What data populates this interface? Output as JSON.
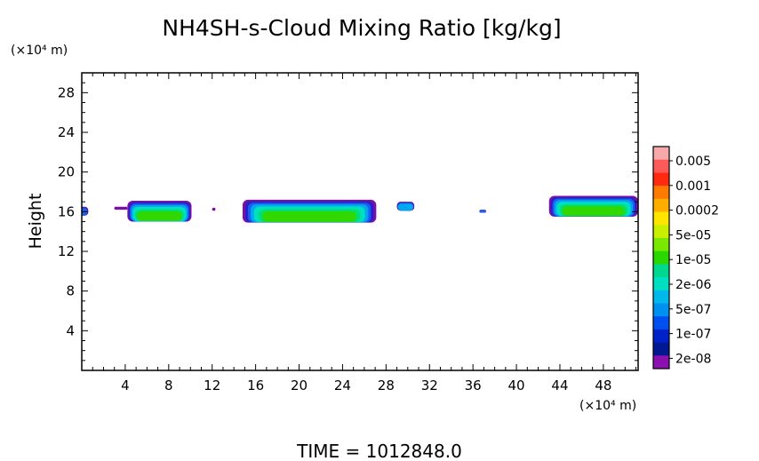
{
  "chart_data": {
    "type": "heatmap",
    "title": "NH4SH-s-Cloud Mixing Ratio [kg/kg]",
    "ylabel": "Height",
    "xlabel": "",
    "y_unit": "(×10⁴ m)",
    "x_unit": "(×10⁴ m)",
    "footer": "TIME =  1012848.0",
    "xlim": [
      0,
      51.2
    ],
    "ylim": [
      0,
      30
    ],
    "x_ticks": [
      4,
      8,
      12,
      16,
      20,
      24,
      28,
      32,
      36,
      40,
      44,
      48
    ],
    "y_ticks": [
      4,
      8,
      12,
      16,
      20,
      24,
      28
    ],
    "colorbar": {
      "labels": [
        "0.005",
        "0.001",
        "0.0002",
        "5e-05",
        "1e-05",
        "2e-06",
        "5e-07",
        "1e-07",
        "2e-08"
      ],
      "levels_top_to_bottom": [
        "#f7a8a8",
        "#ff5a5a",
        "#ff2a10",
        "#ff7a00",
        "#ffae00",
        "#ffe600",
        "#c8f000",
        "#7ae800",
        "#2ad800",
        "#00d890",
        "#00e0c0",
        "#00b8ec",
        "#0090f0",
        "#0050f0",
        "#0020c8",
        "#001890",
        "#8c10b0"
      ]
    },
    "cloud_layers": [
      {
        "x": [
          -1,
          0.6
        ],
        "y": [
          15.6,
          16.5
        ],
        "level": "1e-07"
      },
      {
        "x": [
          3,
          4.2
        ],
        "y": [
          16.2,
          16.5
        ],
        "level": "2e-08"
      },
      {
        "x": [
          4.2,
          10.1
        ],
        "y": [
          15.0,
          17.1
        ],
        "level": "1e-05"
      },
      {
        "x": [
          12.0,
          12.3
        ],
        "y": [
          16.1,
          16.4
        ],
        "level": "2e-08"
      },
      {
        "x": [
          14.8,
          27.1
        ],
        "y": [
          14.9,
          17.2
        ],
        "level": "1e-05"
      },
      {
        "x": [
          29.0,
          30.6
        ],
        "y": [
          16.1,
          17.0
        ],
        "level": "5e-07"
      },
      {
        "x": [
          36.6,
          37.2
        ],
        "y": [
          15.9,
          16.2
        ],
        "level": "1e-07"
      },
      {
        "x": [
          43.0,
          51.2
        ],
        "y": [
          15.5,
          17.6
        ],
        "level": "1e-05"
      }
    ]
  }
}
